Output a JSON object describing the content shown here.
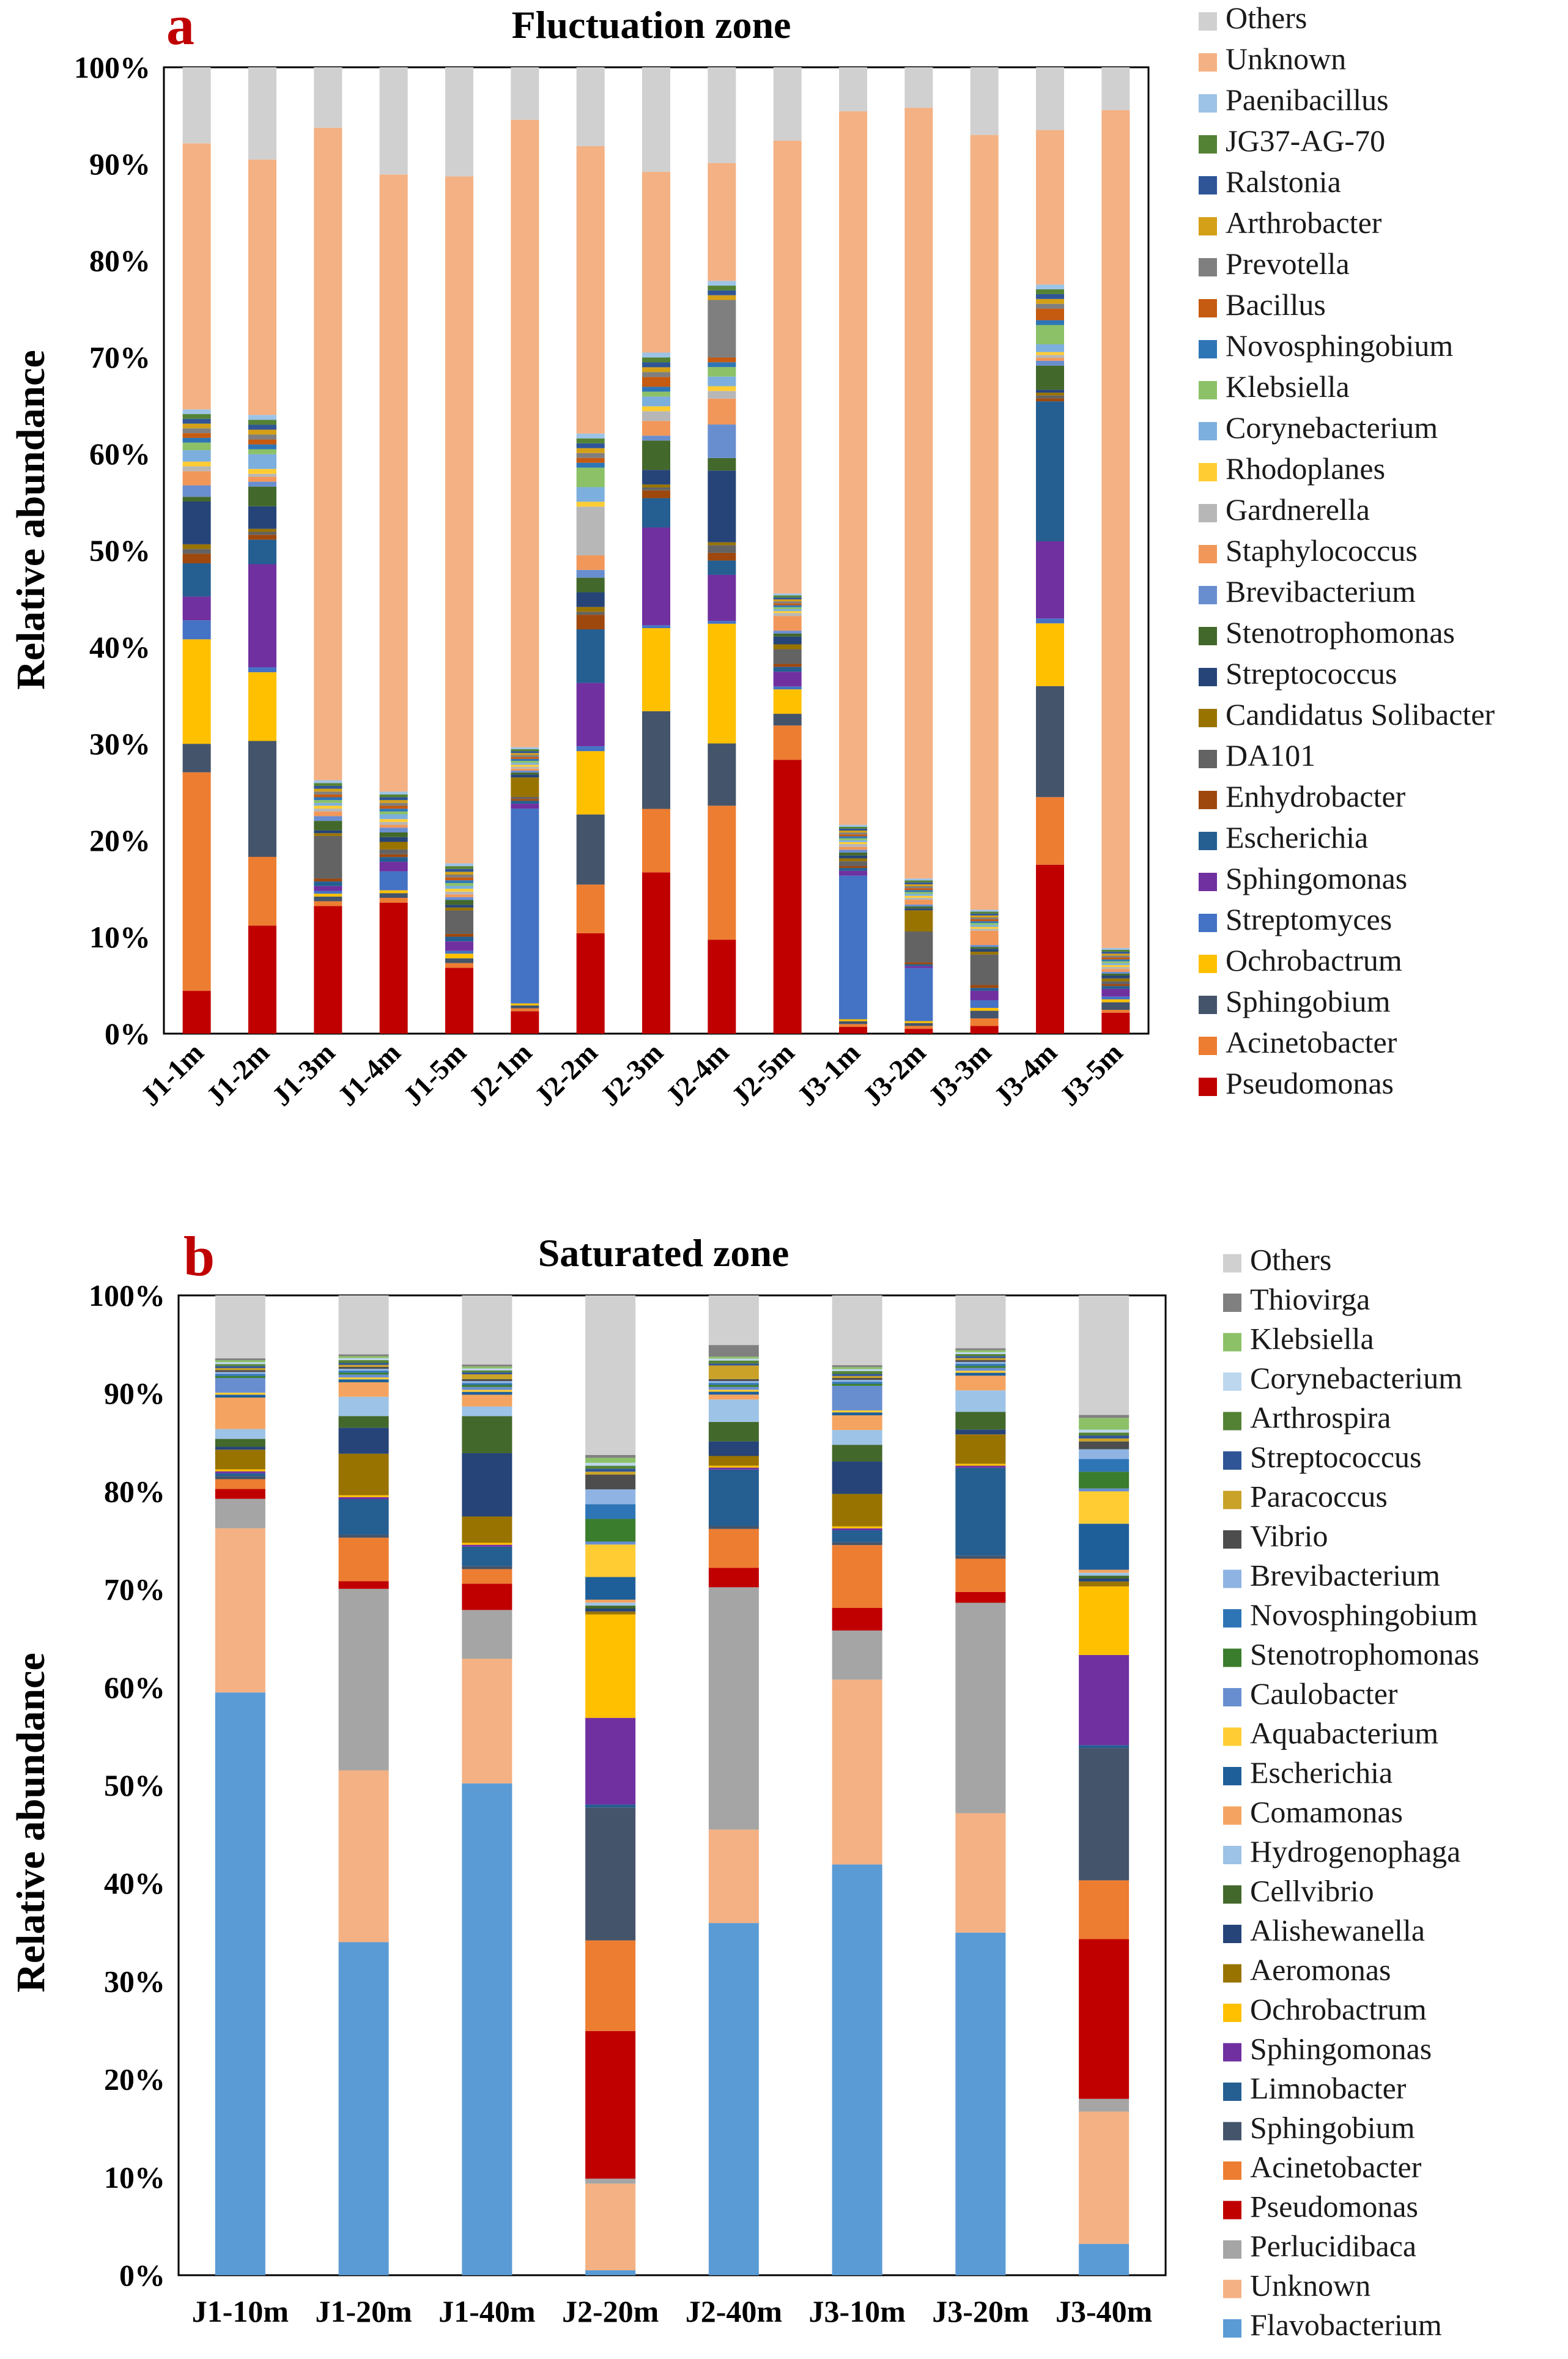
{
  "chart_data": [
    {
      "panel_label": "a",
      "title": "Fluctuation zone",
      "type": "bar",
      "stacked": true,
      "ylabel": "Relative abundance",
      "ylim": [
        0,
        100
      ],
      "yticks": [
        "0%",
        "10%",
        "20%",
        "30%",
        "40%",
        "50%",
        "60%",
        "70%",
        "80%",
        "90%",
        "100%"
      ],
      "categories": [
        "J1-1m",
        "J1-2m",
        "J1-3m",
        "J1-4m",
        "J1-5m",
        "J2-1m",
        "J2-2m",
        "J2-3m",
        "J2-4m",
        "J2-5m",
        "J3-1m",
        "J3-2m",
        "J3-3m",
        "J3-4m",
        "J3-5m"
      ],
      "series": [
        {
          "name": "Pseudomonas",
          "color": "#c00000",
          "values": [
            4.5,
            11,
            13.5,
            13.8,
            7,
            2.3,
            10.3,
            16.5,
            9.8,
            28,
            0.7,
            0.5,
            0.8,
            17.5,
            2.2
          ]
        },
        {
          "name": "Acinetobacter",
          "color": "#ed7d31",
          "values": [
            23,
            7,
            0.5,
            0.5,
            0.5,
            0.3,
            5,
            6.5,
            14,
            3.5,
            0.3,
            0.3,
            0.8,
            7,
            0.3
          ]
        },
        {
          "name": "Sphingobium",
          "color": "#44546a",
          "values": [
            3,
            11.8,
            0.5,
            0.5,
            0.5,
            0.3,
            7.2,
            10,
            6.5,
            1.2,
            0.3,
            0.3,
            0.8,
            11.5,
            0.8
          ]
        },
        {
          "name": "Ochrobactrum",
          "color": "#ffc000",
          "values": [
            11,
            7,
            0.3,
            0.3,
            0.5,
            0.2,
            6.5,
            8.5,
            12.5,
            2.5,
            0.2,
            0.2,
            0.3,
            6.5,
            0.3
          ]
        },
        {
          "name": "Streptomyces",
          "color": "#4472c4",
          "values": [
            2,
            0.5,
            0.3,
            2,
            0.3,
            20,
            0.5,
            0.3,
            0.3,
            0.3,
            15,
            5.5,
            0.8,
            0.5,
            0.3
          ]
        },
        {
          "name": "Sphingomonas",
          "color": "#7030a0",
          "values": [
            2.5,
            10.5,
            0.5,
            1,
            1,
            0.5,
            6.5,
            10,
            4.8,
            1.5,
            0.5,
            0.2,
            1,
            8,
            0.8
          ]
        },
        {
          "name": "Escherichia",
          "color": "#255e91",
          "values": [
            3.5,
            2.5,
            0.5,
            0.5,
            0.5,
            0.3,
            5.5,
            3,
            1.5,
            0.5,
            0.3,
            0.2,
            0.3,
            14.5,
            0.3
          ]
        },
        {
          "name": "Enhydrobacter",
          "color": "#9e480e",
          "values": [
            1,
            0.5,
            0.3,
            0.3,
            0.3,
            0.2,
            1.5,
            0.8,
            0.8,
            0.3,
            0.2,
            0.2,
            0.3,
            0.3,
            0.2
          ]
        },
        {
          "name": "DA101",
          "color": "#636363",
          "values": [
            0.5,
            0.3,
            4.5,
            0.5,
            2.5,
            0.2,
            0.3,
            0.3,
            0.8,
            1.5,
            0.5,
            3.2,
            3.2,
            0.3,
            0.3
          ]
        },
        {
          "name": "Candidatus Solibacter",
          "color": "#997300",
          "values": [
            0.5,
            0.3,
            0.3,
            0.8,
            0.3,
            2,
            0.5,
            0.3,
            0.3,
            0.5,
            0.3,
            2.2,
            0.3,
            0.3,
            0.3
          ]
        },
        {
          "name": "Streptococcus",
          "color": "#264478",
          "values": [
            4.5,
            2.3,
            0.3,
            0.5,
            0.3,
            0.3,
            1.5,
            1.5,
            7.5,
            0.8,
            0.3,
            0.2,
            0.3,
            0.3,
            0.3
          ]
        },
        {
          "name": "Stenotrophomonas",
          "color": "#43682b",
          "values": [
            0.5,
            2,
            1,
            0.5,
            0.5,
            0.2,
            1.5,
            3,
            1.3,
            0.3,
            0.3,
            0.2,
            0.2,
            2.5,
            0.2
          ]
        },
        {
          "name": "Brevibacterium",
          "color": "#698ed0",
          "values": [
            1.2,
            0.5,
            0.5,
            0.5,
            0.3,
            0.2,
            0.8,
            0.5,
            3.5,
            0.3,
            0.3,
            0.2,
            0.2,
            0.5,
            0.2
          ]
        },
        {
          "name": "Staphylococcus",
          "color": "#f1975a",
          "values": [
            1.5,
            0.5,
            0.5,
            0.3,
            0.3,
            0.2,
            1.5,
            1.5,
            2.7,
            1.5,
            0.3,
            0.5,
            1.5,
            0.3,
            0.3
          ]
        },
        {
          "name": "Gardnerella",
          "color": "#b7b7b7",
          "values": [
            0.5,
            0.3,
            0.3,
            0.3,
            0.3,
            0.2,
            5,
            1,
            0.8,
            0.3,
            0.3,
            0.2,
            0.2,
            0.3,
            0.2
          ]
        },
        {
          "name": "Rhodoplanes",
          "color": "#ffcd33",
          "values": [
            0.5,
            0.5,
            0.3,
            0.3,
            0.3,
            0.2,
            0.5,
            0.5,
            0.5,
            0.2,
            0.2,
            0.2,
            0.2,
            0.3,
            0.2
          ]
        },
        {
          "name": "Corynebacterium",
          "color": "#7cafdd",
          "values": [
            1.2,
            1.5,
            0.3,
            0.5,
            0.3,
            0.2,
            1.5,
            1,
            1,
            0.2,
            0.2,
            0.2,
            0.2,
            0.8,
            0.2
          ]
        },
        {
          "name": "Klebsiella",
          "color": "#8cc168",
          "values": [
            0.8,
            0.5,
            0.3,
            0.3,
            0.3,
            0.2,
            2,
            0.5,
            1,
            0.2,
            0.2,
            0.2,
            0.2,
            2,
            0.2
          ]
        },
        {
          "name": "Novosphingobium",
          "color": "#2e75b6",
          "values": [
            0.5,
            0.5,
            0.3,
            0.3,
            0.3,
            0.2,
            0.5,
            0.5,
            0.5,
            0.2,
            0.2,
            0.2,
            0.2,
            0.5,
            0.2
          ]
        },
        {
          "name": "Bacillus",
          "color": "#c55a11",
          "values": [
            0.5,
            0.5,
            0.3,
            0.3,
            0.3,
            0.2,
            0.5,
            1,
            0.5,
            0.2,
            0.2,
            0.2,
            0.2,
            1.2,
            0.2
          ]
        },
        {
          "name": "Prevotella",
          "color": "#7f7f7f",
          "values": [
            0.5,
            0.5,
            0.3,
            0.3,
            0.3,
            0.2,
            0.5,
            0.5,
            6,
            0.2,
            0.2,
            0.2,
            0.2,
            0.5,
            0.2
          ]
        },
        {
          "name": "Arthrobacter",
          "color": "#d4a017",
          "values": [
            0.5,
            0.5,
            0.3,
            0.3,
            0.3,
            0.2,
            0.5,
            0.5,
            0.5,
            0.2,
            0.2,
            0.2,
            0.2,
            0.5,
            0.2
          ]
        },
        {
          "name": "Ralstonia",
          "color": "#2f5597",
          "values": [
            0.5,
            0.5,
            0.3,
            0.3,
            0.3,
            0.2,
            0.5,
            0.5,
            0.5,
            0.2,
            0.2,
            0.2,
            0.2,
            0.5,
            0.2
          ]
        },
        {
          "name": "JG37-AG-70",
          "color": "#548235",
          "values": [
            0.5,
            0.5,
            0.3,
            0.3,
            0.3,
            0.2,
            0.5,
            0.5,
            0.5,
            0.2,
            0.2,
            0.2,
            0.2,
            0.5,
            0.2
          ]
        },
        {
          "name": "Paenibacillus",
          "color": "#9dc3e6",
          "values": [
            0.5,
            0.5,
            0.3,
            0.3,
            0.3,
            0.2,
            0.5,
            0.5,
            0.5,
            0.2,
            0.2,
            0.2,
            0.2,
            0.5,
            0.2
          ]
        },
        {
          "name": "Unknown",
          "color": "#f4b183",
          "values": [
            28,
            26,
            69,
            65,
            73,
            64.4,
            29.5,
            18.5,
            12.3,
            46.3,
            74.5,
            80,
            81.3,
            16,
            88
          ]
        },
        {
          "name": "Others",
          "color": "#d0d0d0",
          "values": [
            8,
            9.4,
            6.4,
            11.3,
            11.6,
            5.4,
            8.1,
            10.7,
            10,
            7.5,
            4.6,
            4.2,
            7.1,
            6.5,
            4.5
          ]
        }
      ]
    },
    {
      "panel_label": "b",
      "title": "Saturated zone",
      "type": "bar",
      "stacked": true,
      "ylabel": "Relative abundance",
      "ylim": [
        0,
        100
      ],
      "yticks": [
        "0%",
        "10%",
        "20%",
        "30%",
        "40%",
        "50%",
        "60%",
        "70%",
        "80%",
        "90%",
        "100%"
      ],
      "categories": [
        "J1-10m",
        "J1-20m",
        "J1-40m",
        "J2-20m",
        "J2-40m",
        "J3-10m",
        "J3-20m",
        "J3-40m"
      ],
      "series": [
        {
          "name": "Flavobacterium",
          "color": "#5b9bd5",
          "values": [
            59.3,
            34.5,
            50.5,
            0.5,
            36.2,
            41.8,
            35,
            3.2
          ]
        },
        {
          "name": "Unknown",
          "color": "#f4b183",
          "values": [
            16.7,
            17.8,
            12.8,
            8.8,
            9.6,
            18.8,
            12.2,
            13.5
          ]
        },
        {
          "name": "Perlucidibaca",
          "color": "#a5a5a5",
          "values": [
            3,
            18.8,
            5,
            0.5,
            24.9,
            5,
            21.5,
            1.3
          ]
        },
        {
          "name": "Pseudomonas",
          "color": "#c00000",
          "values": [
            1,
            0.8,
            2.7,
            15,
            2,
            2.3,
            1.1,
            16.3
          ]
        },
        {
          "name": "Acinetobacter",
          "color": "#ed7d31",
          "values": [
            1,
            4.5,
            1.5,
            9.2,
            4,
            6.4,
            3.4,
            6
          ]
        },
        {
          "name": "Sphingobium",
          "color": "#44546a",
          "values": [
            0.3,
            0.3,
            0.3,
            13.5,
            0.3,
            0.3,
            0.3,
            13.5
          ]
        },
        {
          "name": "Limnobacter",
          "color": "#255e91",
          "values": [
            0.3,
            3.7,
            2,
            0.3,
            5.8,
            1.2,
            9,
            0.3
          ]
        },
        {
          "name": "Sphingomonas",
          "color": "#7030a0",
          "values": [
            0.2,
            0.2,
            0.2,
            8.8,
            0.2,
            0.2,
            0.2,
            9.2
          ]
        },
        {
          "name": "Ochrobactrum",
          "color": "#ffc000",
          "values": [
            0.2,
            0.2,
            0.2,
            10.5,
            0.2,
            0.2,
            0.2,
            7
          ]
        },
        {
          "name": "Aeromonas",
          "color": "#997300",
          "values": [
            2,
            4.3,
            2.7,
            0.3,
            1,
            3.3,
            3,
            0.5
          ]
        },
        {
          "name": "Alishewanella",
          "color": "#264478",
          "values": [
            0.3,
            2.7,
            6.5,
            0.3,
            1.5,
            3.3,
            0.5,
            0.3
          ]
        },
        {
          "name": "Cellvibrio",
          "color": "#43682b",
          "values": [
            0.8,
            1.2,
            3.8,
            0.3,
            2,
            1.7,
            1.8,
            0.3
          ]
        },
        {
          "name": "Hydrogenophaga",
          "color": "#9dc3e6",
          "values": [
            1,
            2,
            1,
            0.3,
            2.3,
            1.5,
            2.2,
            0.3
          ]
        },
        {
          "name": "Comamonas",
          "color": "#f4a460",
          "values": [
            3.2,
            1.5,
            1.2,
            0.3,
            0.5,
            1.5,
            1.5,
            0.3
          ]
        },
        {
          "name": "Escherichia",
          "color": "#1f5f99",
          "values": [
            0.3,
            0.3,
            0.3,
            2.3,
            0.3,
            0.3,
            0.3,
            4.7
          ]
        },
        {
          "name": "Aquabacterium",
          "color": "#ffcd33",
          "values": [
            0.2,
            0.2,
            0.2,
            3.3,
            0.2,
            0.2,
            0.2,
            3.3
          ]
        },
        {
          "name": "Caulobacter",
          "color": "#698ed0",
          "values": [
            1.5,
            0.3,
            0.3,
            0.3,
            0.3,
            2.5,
            0.3,
            0.3
          ]
        },
        {
          "name": "Stenotrophomonas",
          "color": "#3a7d2c",
          "values": [
            0.2,
            0.2,
            0.2,
            2.3,
            0.2,
            0.2,
            0.2,
            1.7
          ]
        },
        {
          "name": "Novosphingobium",
          "color": "#2e75b6",
          "values": [
            0.2,
            0.2,
            0.2,
            1.5,
            0.2,
            0.2,
            0.2,
            1.3
          ]
        },
        {
          "name": "Brevibacterium",
          "color": "#8fb4e3",
          "values": [
            0.2,
            0.2,
            0.2,
            1.5,
            0.2,
            0.2,
            0.2,
            1
          ]
        },
        {
          "name": "Vibrio",
          "color": "#4d4d4d",
          "values": [
            0.2,
            0.2,
            0.2,
            1.5,
            0.2,
            0.2,
            0.2,
            0.8
          ]
        },
        {
          "name": "Paracoccus",
          "color": "#c9a227",
          "values": [
            0.2,
            0.2,
            0.5,
            0.3,
            1.4,
            0.2,
            0.2,
            0.3
          ]
        },
        {
          "name": "Streptococcus",
          "color": "#2f5597",
          "values": [
            0.2,
            0.2,
            0.2,
            0.3,
            0.2,
            0.2,
            0.2,
            0.3
          ]
        },
        {
          "name": "Arthrospira",
          "color": "#548235",
          "values": [
            0.2,
            0.3,
            0.2,
            0.3,
            0.3,
            0.3,
            0.2,
            0.3
          ]
        },
        {
          "name": "Corynebacterium",
          "color": "#bdd7ee",
          "values": [
            0.2,
            0.2,
            0.2,
            0.3,
            0.2,
            0.2,
            0.2,
            0.3
          ]
        },
        {
          "name": "Klebsiella",
          "color": "#8cc168",
          "values": [
            0.2,
            0.2,
            0.2,
            0.5,
            0.2,
            0.2,
            0.2,
            1.2
          ]
        },
        {
          "name": "Thiovirga",
          "color": "#808080",
          "values": [
            0.2,
            0.2,
            0.2,
            0.3,
            1.2,
            0.2,
            0.2,
            0.3
          ]
        },
        {
          "name": "Others",
          "color": "#d0d0d0",
          "values": [
            6.4,
            6.1,
            7.1,
            16.2,
            5.1,
            7.1,
            5.4,
            12.2
          ]
        }
      ]
    }
  ]
}
